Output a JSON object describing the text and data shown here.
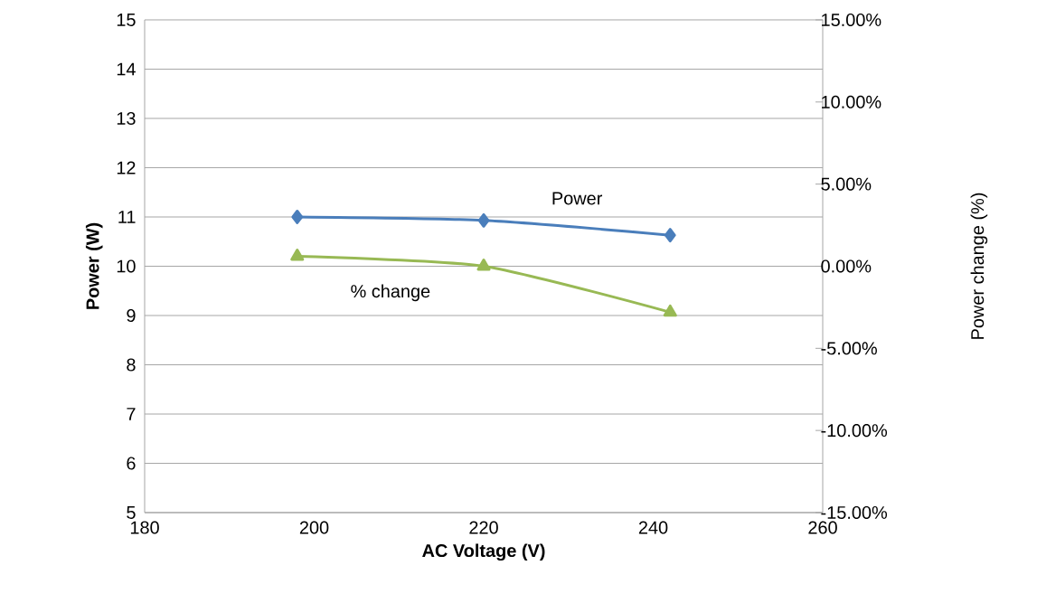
{
  "chart_data": {
    "type": "line",
    "xlabel": "AC Voltage (V)",
    "ylabel": "Power (W)",
    "y2label": "Power change (%)",
    "xlim": [
      180,
      260
    ],
    "xticks": [
      180,
      200,
      220,
      240,
      260
    ],
    "ylim": [
      5,
      15
    ],
    "yticks": [
      5,
      6,
      7,
      8,
      9,
      10,
      11,
      12,
      13,
      14,
      15
    ],
    "y2lim": [
      -15,
      15
    ],
    "y2ticks": [
      {
        "value": -15,
        "label": "-15.00%"
      },
      {
        "value": -10,
        "label": "-10.00%"
      },
      {
        "value": -5,
        "label": "-5.00%"
      },
      {
        "value": 0,
        "label": "0.00%"
      },
      {
        "value": 5,
        "label": "5.00%"
      },
      {
        "value": 10,
        "label": "10.00%"
      },
      {
        "value": 15,
        "label": "15.00%"
      }
    ],
    "grid": "y",
    "legend": false,
    "series": [
      {
        "name": "Power",
        "color": "#4a7ebb",
        "marker": "diamond",
        "x": [
          198,
          220,
          242
        ],
        "values": [
          11.0,
          10.93,
          10.63
        ]
      },
      {
        "name": "% change",
        "color": "#98b954",
        "marker": "triangle",
        "axis": "y2",
        "x": [
          198,
          220,
          242
        ],
        "values": [
          0.6,
          0.0,
          -2.8
        ]
      }
    ]
  }
}
